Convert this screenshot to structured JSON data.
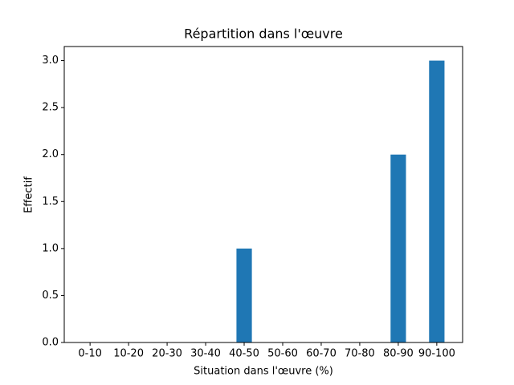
{
  "chart_data": {
    "type": "bar",
    "title": "Répartition dans l'œuvre",
    "x_label": "Situation dans l'œuvre (%)",
    "y_label": "Effectif",
    "categories": [
      "0-10",
      "10-20",
      "20-30",
      "30-40",
      "40-50",
      "50-60",
      "60-70",
      "70-80",
      "80-90",
      "90-100"
    ],
    "values": [
      0,
      0,
      0,
      0,
      1,
      0,
      0,
      0,
      2,
      3
    ],
    "color": "#1f77b4",
    "ylim": [
      0,
      3.15
    ],
    "yticks": [
      {
        "value": 0,
        "label": "0.0"
      },
      {
        "value": 0.5,
        "label": "0.5"
      },
      {
        "value": 1,
        "label": "1.0"
      },
      {
        "value": 1.5,
        "label": "1.5"
      },
      {
        "value": 2,
        "label": "2.0"
      },
      {
        "value": 2.5,
        "label": "2.5"
      },
      {
        "value": 3,
        "label": "3.0"
      }
    ],
    "grid": false
  }
}
